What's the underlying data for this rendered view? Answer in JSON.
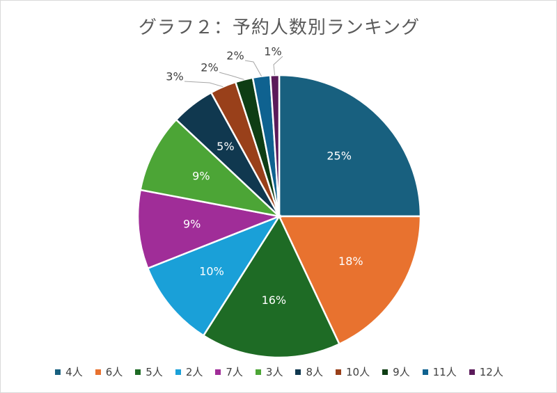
{
  "chart_data": {
    "type": "pie",
    "title": "グラフ２：予約人数別ランキング",
    "categories": [
      "4人",
      "6人",
      "5人",
      "2人",
      "7人",
      "3人",
      "8人",
      "10人",
      "9人",
      "11人",
      "12人"
    ],
    "values": [
      25,
      18,
      16,
      10,
      9,
      9,
      5,
      3,
      2,
      2,
      1
    ],
    "labels": [
      "25%",
      "18%",
      "16%",
      "10%",
      "9%",
      "9%",
      "5%",
      "3%",
      "2%",
      "2%",
      "1%"
    ],
    "colors": [
      "#18607f",
      "#e8722f",
      "#1e6b25",
      "#1aa0d8",
      "#a02d98",
      "#4ca536",
      "#10384f",
      "#99401a",
      "#0e3d14",
      "#0f6290",
      "#5b1a5a"
    ],
    "legend_position": "bottom"
  }
}
